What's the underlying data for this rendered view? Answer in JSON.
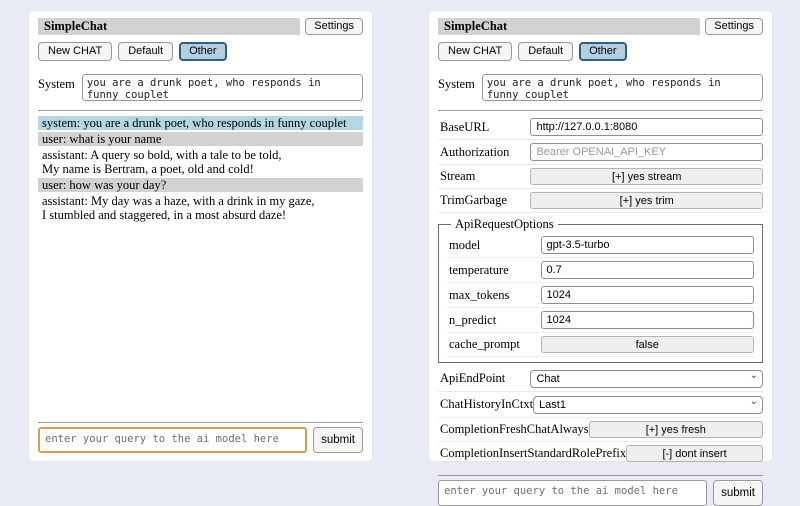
{
  "left": {
    "title": "SimpleChat",
    "settings_button": "Settings",
    "session_buttons": [
      "New CHAT",
      "Default",
      "Other"
    ],
    "active_session": "Other",
    "system_label": "System",
    "system_value": "you are a drunk poet, who responds in funny couplet",
    "messages": [
      {
        "role": "system",
        "text": "system: you are a drunk poet, who responds in funny couplet"
      },
      {
        "role": "user",
        "text": "user: what is your name"
      },
      {
        "role": "assistant",
        "text": "assistant: A query so bold, with a tale to be told,\nMy name is Bertram, a poet, old and cold!"
      },
      {
        "role": "user",
        "text": "user: how was your day?"
      },
      {
        "role": "assistant",
        "text": "assistant: My day was a haze, with a drink in my gaze,\nI stumbled and staggered, in a most absurd daze!"
      }
    ],
    "query_placeholder": "enter your query to the ai model here",
    "submit_label": "submit"
  },
  "right": {
    "title": "SimpleChat",
    "settings_button": "Settings",
    "session_buttons": [
      "New CHAT",
      "Default",
      "Other"
    ],
    "active_session": "Other",
    "system_label": "System",
    "system_value": "you are a drunk poet, who responds in funny couplet",
    "settings": [
      {
        "label": "BaseURL",
        "value": "http://127.0.0.1:8080"
      },
      {
        "label": "Authorization",
        "placeholder": "Bearer OPENAI_API_KEY"
      },
      {
        "label": "Stream",
        "button": "[+] yes stream"
      },
      {
        "label": "TrimGarbage",
        "button": "[+] yes trim"
      }
    ],
    "api_request_options": {
      "legend": "ApiRequestOptions",
      "rows": [
        {
          "label": "model",
          "value": "gpt-3.5-turbo"
        },
        {
          "label": "temperature",
          "value": "0.7"
        },
        {
          "label": "max_tokens",
          "value": "1024"
        },
        {
          "label": "n_predict",
          "value": "1024"
        },
        {
          "label": "cache_prompt",
          "button": "false"
        }
      ]
    },
    "settings2": [
      {
        "label": "ApiEndPoint",
        "select": "Chat"
      },
      {
        "label": "ChatHistoryInCtxt",
        "select": "Last1"
      },
      {
        "label": "CompletionFreshChatAlways",
        "button": "[+] yes fresh"
      },
      {
        "label": "CompletionInsertStandardRolePrefix",
        "button": "[-] dont insert"
      }
    ],
    "query_placeholder": "enter your query to the ai model here",
    "submit_label": "submit"
  },
  "colors": {
    "page_bg": "#e9ebf4",
    "titlebar_bg": "#d2d2d2",
    "system_message_bg": "#b5d7e5",
    "user_message_bg": "#d2d2d2",
    "active_session_bg": "#b2d0e0",
    "active_session_border": "#2d5f87",
    "query_border_accent": "#d8a050"
  }
}
